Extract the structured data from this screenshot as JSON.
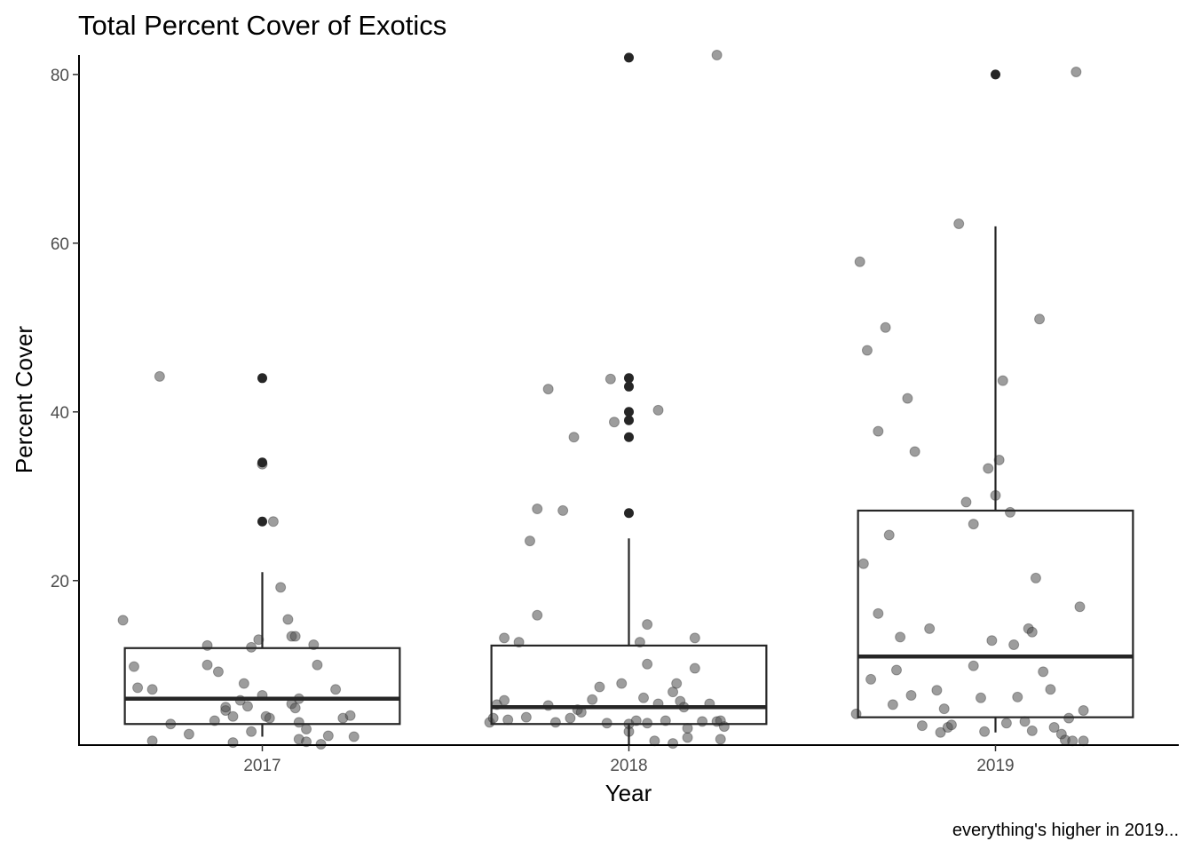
{
  "chart_data": {
    "type": "boxplot",
    "title": "Total Percent Cover of Exotics",
    "xlabel": "Year",
    "ylabel": "Percent Cover",
    "caption": "everything's higher in 2019...",
    "ylim": [
      0.5,
      82.3
    ],
    "yticks": [
      20,
      40,
      60,
      80
    ],
    "grid": false,
    "categories": [
      "2017",
      "2018",
      "2019"
    ],
    "colors": {
      "box": "#262626",
      "point": "#4d4d4d",
      "outlier": "#262626",
      "axis": "#000000"
    },
    "boxes": [
      {
        "category": "2017",
        "q1": 3,
        "median": 6,
        "q3": 12,
        "whisker_low": 1.5,
        "whisker_high": 21,
        "outliers": [
          27,
          34,
          44
        ]
      },
      {
        "category": "2018",
        "q1": 3,
        "median": 5,
        "q3": 12.3,
        "whisker_low": 0.5,
        "whisker_high": 25,
        "outliers": [
          28,
          37,
          39,
          40,
          43,
          44,
          82
        ]
      },
      {
        "category": "2019",
        "q1": 3.8,
        "median": 11,
        "q3": 28.3,
        "whisker_low": 2,
        "whisker_high": 62,
        "outliers": [
          80
        ]
      }
    ],
    "points": [
      {
        "category": "2017",
        "x": [
          -0.38,
          -0.35,
          -0.34,
          -0.3,
          -0.3,
          -0.28,
          -0.25,
          -0.15,
          -0.15,
          -0.13,
          -0.1,
          -0.1,
          -0.08,
          -0.06,
          -0.05,
          -0.04,
          -0.03,
          -0.03,
          -0.01,
          0.0,
          0.0,
          0.01,
          0.03,
          0.05,
          0.07,
          0.08,
          0.09,
          0.08,
          0.09,
          0.1,
          0.1,
          0.12,
          0.14,
          0.12,
          0.15,
          0.16,
          0.18,
          0.2,
          0.22,
          0.24,
          0.25,
          0.1,
          -0.12,
          -0.2,
          -0.08,
          0.02
        ],
        "y": [
          15.3,
          9.8,
          7.3,
          1.0,
          7.1,
          44.2,
          3.0,
          12.3,
          10.0,
          3.4,
          4.6,
          5.0,
          3.9,
          5.8,
          7.8,
          5.1,
          2.1,
          12.1,
          13.0,
          33.8,
          6.4,
          3.9,
          27.0,
          19.2,
          15.4,
          13.4,
          13.4,
          5.4,
          4.9,
          3.2,
          1.2,
          0.9,
          12.4,
          2.4,
          10.0,
          0.6,
          1.6,
          7.1,
          3.7,
          4.0,
          1.5,
          6.0,
          9.2,
          1.8,
          0.8,
          3.7
        ]
      },
      {
        "category": "2018",
        "x": [
          -0.38,
          -0.37,
          -0.36,
          -0.34,
          -0.34,
          -0.3,
          -0.28,
          -0.27,
          -0.25,
          -0.25,
          -0.22,
          -0.22,
          -0.2,
          -0.18,
          -0.16,
          -0.15,
          -0.14,
          -0.13,
          -0.1,
          -0.08,
          -0.06,
          -0.05,
          -0.04,
          -0.02,
          0.0,
          0.0,
          0.02,
          0.03,
          0.04,
          0.05,
          0.05,
          0.07,
          0.08,
          0.08,
          0.1,
          0.12,
          0.13,
          0.14,
          0.15,
          0.16,
          0.16,
          0.18,
          0.18,
          0.2,
          0.22,
          0.24,
          0.24,
          0.25,
          0.25,
          0.26,
          0.05,
          -0.33,
          0.12
        ],
        "y": [
          3.2,
          3.7,
          5.3,
          13.2,
          5.8,
          12.7,
          3.8,
          24.7,
          15.9,
          28.5,
          42.7,
          5.2,
          3.2,
          28.3,
          3.7,
          37.0,
          4.7,
          4.4,
          5.9,
          7.4,
          3.1,
          43.9,
          38.8,
          7.8,
          3.0,
          2.1,
          3.4,
          12.7,
          6.1,
          14.8,
          3.1,
          1.0,
          5.4,
          40.2,
          3.4,
          6.8,
          7.8,
          5.7,
          5.0,
          1.4,
          2.5,
          13.2,
          9.6,
          3.3,
          5.4,
          3.3,
          82.5,
          1.2,
          3.4,
          2.7,
          10.1,
          3.5,
          0.7
        ]
      },
      {
        "category": "2019",
        "x": [
          -0.38,
          -0.37,
          -0.36,
          -0.35,
          -0.34,
          -0.32,
          -0.32,
          -0.3,
          -0.29,
          -0.27,
          -0.26,
          -0.24,
          -0.23,
          -0.22,
          -0.2,
          -0.18,
          -0.15,
          -0.13,
          -0.12,
          -0.1,
          -0.08,
          -0.06,
          -0.06,
          -0.04,
          -0.03,
          -0.02,
          -0.01,
          0.0,
          0.01,
          0.02,
          0.04,
          0.05,
          0.06,
          0.08,
          0.09,
          0.1,
          0.11,
          0.12,
          0.13,
          0.15,
          0.16,
          0.18,
          0.19,
          0.2,
          0.21,
          0.22,
          0.23,
          0.24,
          0.24,
          -0.28,
          -0.16,
          -0.14,
          0.03,
          0.1
        ],
        "y": [
          4.2,
          57.8,
          22.0,
          47.3,
          8.3,
          16.1,
          37.7,
          50.0,
          25.4,
          9.4,
          13.3,
          41.6,
          6.4,
          35.3,
          2.8,
          14.3,
          2.0,
          2.6,
          2.9,
          62.3,
          29.3,
          26.7,
          9.9,
          6.1,
          2.1,
          33.3,
          12.9,
          30.1,
          34.3,
          43.7,
          28.1,
          12.4,
          6.2,
          3.3,
          14.3,
          13.9,
          20.3,
          51.0,
          9.2,
          7.1,
          2.6,
          1.8,
          1.1,
          3.7,
          1.0,
          80.3,
          16.9,
          1.0,
          4.6,
          5.3,
          7.0,
          4.8,
          3.1,
          2.2
        ]
      }
    ]
  }
}
